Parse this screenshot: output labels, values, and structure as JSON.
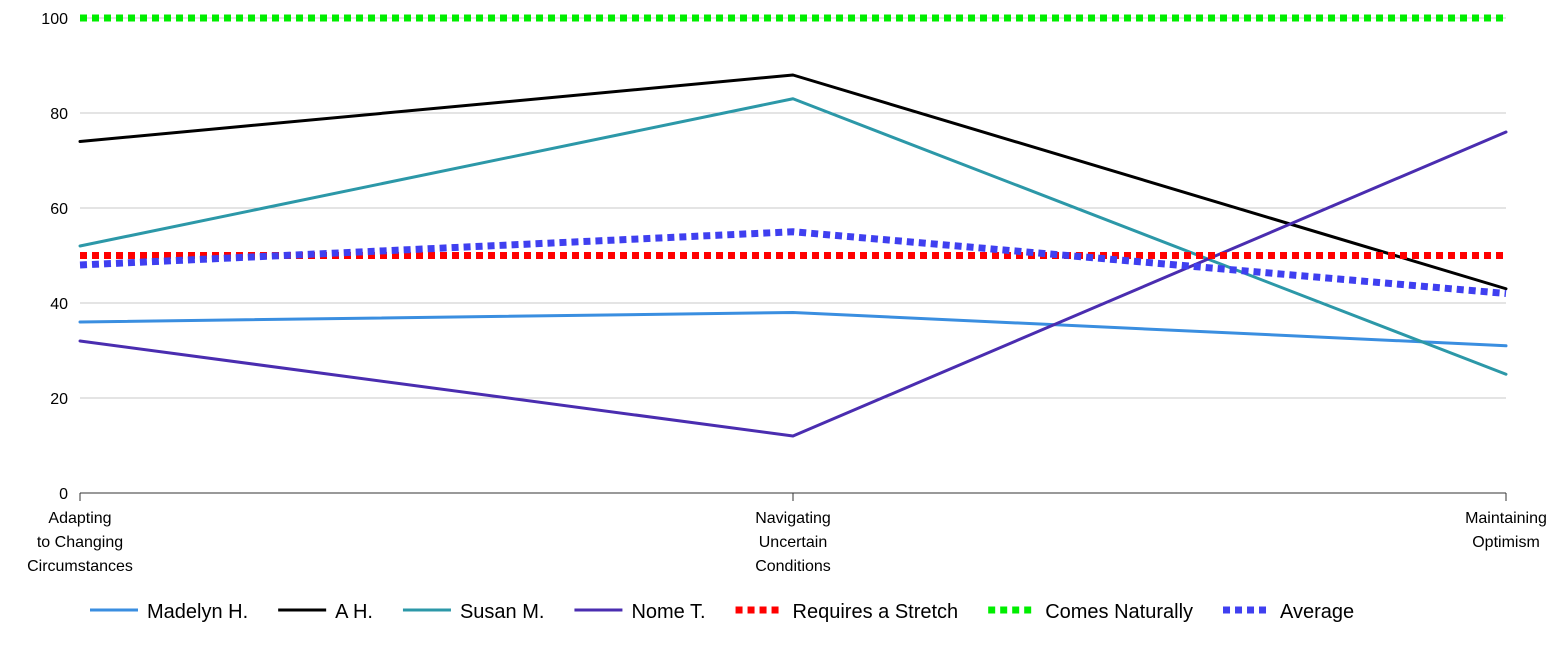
{
  "chart_data": {
    "type": "line",
    "categories": [
      [
        "Adapting",
        "to Changing",
        "Circumstances"
      ],
      [
        "Navigating",
        "Uncertain",
        "Conditions"
      ],
      [
        "Maintaining",
        "Optimism"
      ]
    ],
    "ylim": [
      0,
      100
    ],
    "yticks": [
      0,
      20,
      40,
      60,
      80,
      100
    ],
    "grid": true,
    "legend_position": "bottom",
    "series": [
      {
        "name": "Madelyn H.",
        "values": [
          36,
          38,
          31
        ],
        "color": "#3a8ee0",
        "style": "solid"
      },
      {
        "name": "A H.",
        "values": [
          74,
          88,
          43
        ],
        "color": "#000000",
        "style": "solid"
      },
      {
        "name": "Susan M.",
        "values": [
          52,
          83,
          25
        ],
        "color": "#2c98a8",
        "style": "solid"
      },
      {
        "name": "Nome T.",
        "values": [
          32,
          12,
          76
        ],
        "color": "#4a2db0",
        "style": "solid"
      },
      {
        "name": "Requires a Stretch",
        "values": [
          50,
          50,
          50
        ],
        "color": "#ff0000",
        "style": "dotted"
      },
      {
        "name": "Comes Naturally",
        "values": [
          100,
          100,
          100
        ],
        "color": "#00ee00",
        "style": "dotted"
      },
      {
        "name": "Average",
        "values": [
          48,
          55,
          42
        ],
        "color": "#3f3ff0",
        "style": "dotted"
      }
    ]
  }
}
